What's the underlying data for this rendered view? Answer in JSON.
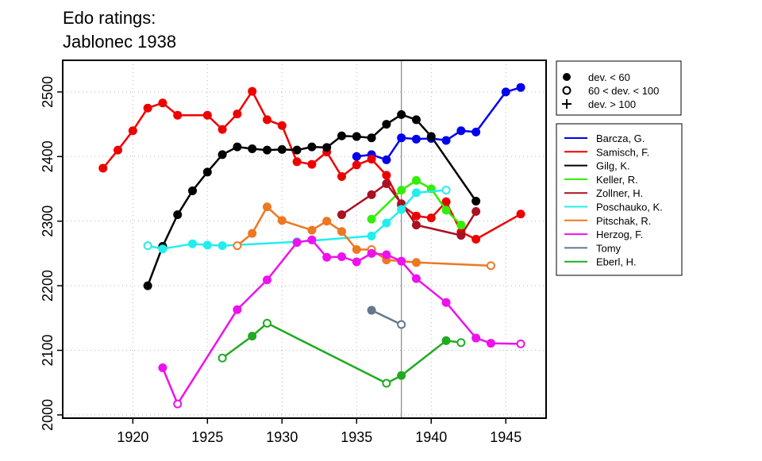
{
  "chart_data": {
    "type": "line",
    "title_line1": "Edo ratings:",
    "title_line2": "Jablonec 1938",
    "xlabel": "",
    "ylabel": "",
    "xlim": [
      1915.3,
      1947.7
    ],
    "ylim": [
      1995,
      2549
    ],
    "x_ticks": [
      1920,
      1925,
      1930,
      1935,
      1940,
      1945
    ],
    "y_ticks": [
      2000,
      2100,
      2200,
      2300,
      2400,
      2500
    ],
    "grid": true,
    "reference_line_x": 1938,
    "marker_legend": [
      {
        "label": "dev. < 60",
        "symbol": "filled-circle"
      },
      {
        "label": "60 < dev. < 100",
        "symbol": "open-circle"
      },
      {
        "label": "dev. > 100",
        "symbol": "plus"
      }
    ],
    "series": [
      {
        "name": "Barcza, G.",
        "color": "#0000ee",
        "points": [
          [
            1935,
            2400,
            "f"
          ],
          [
            1936,
            2403,
            "f"
          ],
          [
            1937,
            2395,
            "f"
          ],
          [
            1938,
            2429,
            "f"
          ],
          [
            1939,
            2427,
            "f"
          ],
          [
            1940,
            2428,
            "f"
          ],
          [
            1941,
            2425,
            "f"
          ],
          [
            1942,
            2440,
            "f"
          ],
          [
            1943,
            2438,
            "f"
          ],
          [
            1945,
            2500,
            "f"
          ],
          [
            1946,
            2507,
            "f"
          ]
        ]
      },
      {
        "name": "Samisch, F.",
        "color": "#ee0000",
        "points": [
          [
            1918,
            2382,
            "f"
          ],
          [
            1919,
            2410,
            "f"
          ],
          [
            1920,
            2440,
            "f"
          ],
          [
            1921,
            2475,
            "f"
          ],
          [
            1922,
            2483,
            "f"
          ],
          [
            1923,
            2464,
            "f"
          ],
          [
            1925,
            2464,
            "f"
          ],
          [
            1926,
            2442,
            "f"
          ],
          [
            1927,
            2466,
            "f"
          ],
          [
            1928,
            2501,
            "f"
          ],
          [
            1929,
            2457,
            "f"
          ],
          [
            1930,
            2448,
            "f"
          ],
          [
            1931,
            2392,
            "f"
          ],
          [
            1932,
            2388,
            "f"
          ],
          [
            1933,
            2407,
            "f"
          ],
          [
            1934,
            2369,
            "f"
          ],
          [
            1935,
            2387,
            "f"
          ],
          [
            1936,
            2396,
            "f"
          ],
          [
            1937,
            2371,
            "f"
          ],
          [
            1938,
            2325,
            "f"
          ],
          [
            1939,
            2308,
            "f"
          ],
          [
            1940,
            2305,
            "f"
          ],
          [
            1941,
            2330,
            "f"
          ],
          [
            1942,
            2283,
            "f"
          ],
          [
            1943,
            2272,
            "f"
          ],
          [
            1946,
            2311,
            "f"
          ]
        ]
      },
      {
        "name": "Gilg, K.",
        "color": "#000000",
        "points": [
          [
            1921,
            2200,
            "f"
          ],
          [
            1922,
            2261,
            "f"
          ],
          [
            1923,
            2310,
            "f"
          ],
          [
            1924,
            2347,
            "f"
          ],
          [
            1925,
            2376,
            "f"
          ],
          [
            1926,
            2403,
            "f"
          ],
          [
            1927,
            2415,
            "f"
          ],
          [
            1928,
            2412,
            "f"
          ],
          [
            1929,
            2410,
            "f"
          ],
          [
            1930,
            2411,
            "f"
          ],
          [
            1931,
            2410,
            "f"
          ],
          [
            1932,
            2415,
            "f"
          ],
          [
            1933,
            2414,
            "f"
          ],
          [
            1934,
            2432,
            "f"
          ],
          [
            1935,
            2431,
            "f"
          ],
          [
            1936,
            2429,
            "f"
          ],
          [
            1937,
            2450,
            "f"
          ],
          [
            1938,
            2465,
            "f"
          ],
          [
            1939,
            2457,
            "f"
          ],
          [
            1940,
            2431,
            "f"
          ],
          [
            1943,
            2331,
            "f"
          ]
        ]
      },
      {
        "name": "Keller, R.",
        "color": "#33ee00",
        "points": [
          [
            1936,
            2303,
            "f"
          ],
          [
            1938,
            2348,
            "f"
          ],
          [
            1939,
            2363,
            "f"
          ],
          [
            1940,
            2350,
            "f"
          ],
          [
            1941,
            2317,
            "f"
          ],
          [
            1942,
            2294,
            "f"
          ]
        ]
      },
      {
        "name": "Zollner, H.",
        "color": "#aa1122",
        "points": [
          [
            1934,
            2310,
            "f"
          ],
          [
            1936,
            2341,
            "f"
          ],
          [
            1937,
            2358,
            "f"
          ],
          [
            1938,
            2327,
            "f"
          ],
          [
            1939,
            2294,
            "f"
          ],
          [
            1942,
            2278,
            "f"
          ],
          [
            1943,
            2315,
            "f"
          ]
        ]
      },
      {
        "name": "Poschauko, K.",
        "color": "#22eeee",
        "points": [
          [
            1921,
            2262,
            "o"
          ],
          [
            1922,
            2257,
            "f"
          ],
          [
            1924,
            2265,
            "f"
          ],
          [
            1925,
            2263,
            "f"
          ],
          [
            1926,
            2262,
            "f"
          ],
          [
            1931,
            2268,
            "f"
          ],
          [
            1936,
            2277,
            "f"
          ],
          [
            1937,
            2297,
            "f"
          ],
          [
            1938,
            2318,
            "f"
          ],
          [
            1939,
            2344,
            "f"
          ],
          [
            1941,
            2348,
            "o"
          ]
        ]
      },
      {
        "name": "Pitschak, R.",
        "color": "#ee7722",
        "points": [
          [
            1927,
            2262,
            "o"
          ],
          [
            1928,
            2281,
            "f"
          ],
          [
            1929,
            2322,
            "f"
          ],
          [
            1930,
            2301,
            "f"
          ],
          [
            1932,
            2286,
            "f"
          ],
          [
            1933,
            2300,
            "f"
          ],
          [
            1934,
            2284,
            "f"
          ],
          [
            1935,
            2256,
            "f"
          ],
          [
            1936,
            2256,
            "o"
          ],
          [
            1937,
            2240,
            "f"
          ],
          [
            1939,
            2236,
            "f"
          ],
          [
            1944,
            2231,
            "o"
          ]
        ]
      },
      {
        "name": "Herzog, F.",
        "color": "#ee11ee",
        "points": [
          [
            1922,
            2073,
            "f"
          ],
          [
            1923,
            2017,
            "o"
          ],
          [
            1927,
            2163,
            "f"
          ],
          [
            1929,
            2209,
            "f"
          ],
          [
            1931,
            2267,
            "f"
          ],
          [
            1932,
            2271,
            "f"
          ],
          [
            1933,
            2244,
            "f"
          ],
          [
            1934,
            2245,
            "f"
          ],
          [
            1935,
            2237,
            "f"
          ],
          [
            1936,
            2250,
            "f"
          ],
          [
            1937,
            2248,
            "f"
          ],
          [
            1938,
            2238,
            "f"
          ],
          [
            1939,
            2211,
            "f"
          ],
          [
            1941,
            2174,
            "f"
          ],
          [
            1943,
            2119,
            "f"
          ],
          [
            1944,
            2111,
            "f"
          ],
          [
            1946,
            2110,
            "o"
          ]
        ]
      },
      {
        "name": "Tomy",
        "color": "#667788",
        "points": [
          [
            1936,
            2162,
            "f"
          ],
          [
            1938,
            2140,
            "o"
          ]
        ]
      },
      {
        "name": "Eberl, H.",
        "color": "#22aa22",
        "points": [
          [
            1926,
            2088,
            "o"
          ],
          [
            1928,
            2122,
            "f"
          ],
          [
            1929,
            2142,
            "o"
          ],
          [
            1937,
            2049,
            "o"
          ],
          [
            1938,
            2061,
            "f"
          ],
          [
            1941,
            2115,
            "f"
          ],
          [
            1942,
            2112,
            "o"
          ]
        ]
      }
    ]
  }
}
